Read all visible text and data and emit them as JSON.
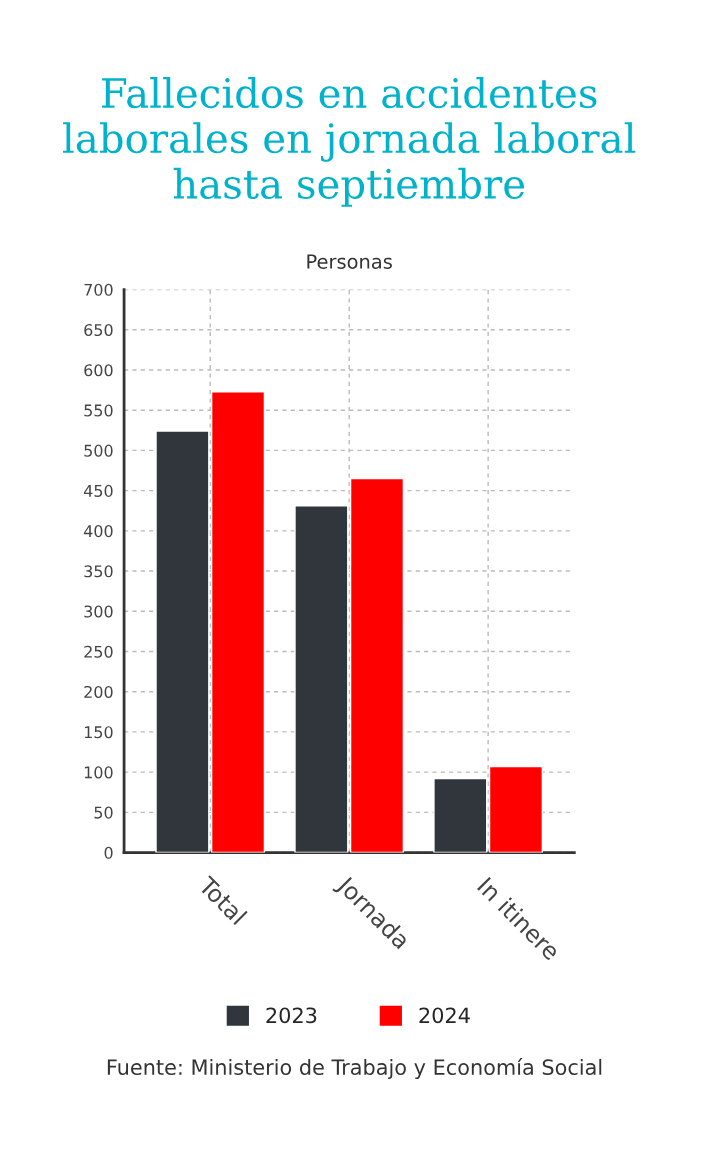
{
  "chart_data": {
    "type": "bar",
    "title": "Fallecidos en accidentes laborales en jornada laboral hasta septiembre",
    "ylabel": "Personas",
    "categories": [
      "Total",
      "Jornada",
      "In itinere"
    ],
    "series": [
      {
        "name": "2023",
        "color": "#31363d",
        "values": [
          524,
          431,
          92
        ]
      },
      {
        "name": "2024",
        "color": "#ff0000",
        "values": [
          573,
          465,
          107
        ]
      }
    ],
    "ylim": [
      0,
      700
    ],
    "yticks": [
      0,
      50,
      100,
      150,
      200,
      250,
      300,
      350,
      400,
      450,
      500,
      550,
      600,
      650,
      700
    ],
    "grid": true,
    "legend": "bottom",
    "annotations": [
      "Fuente: Ministerio de Trabajo y Economía Social"
    ]
  }
}
